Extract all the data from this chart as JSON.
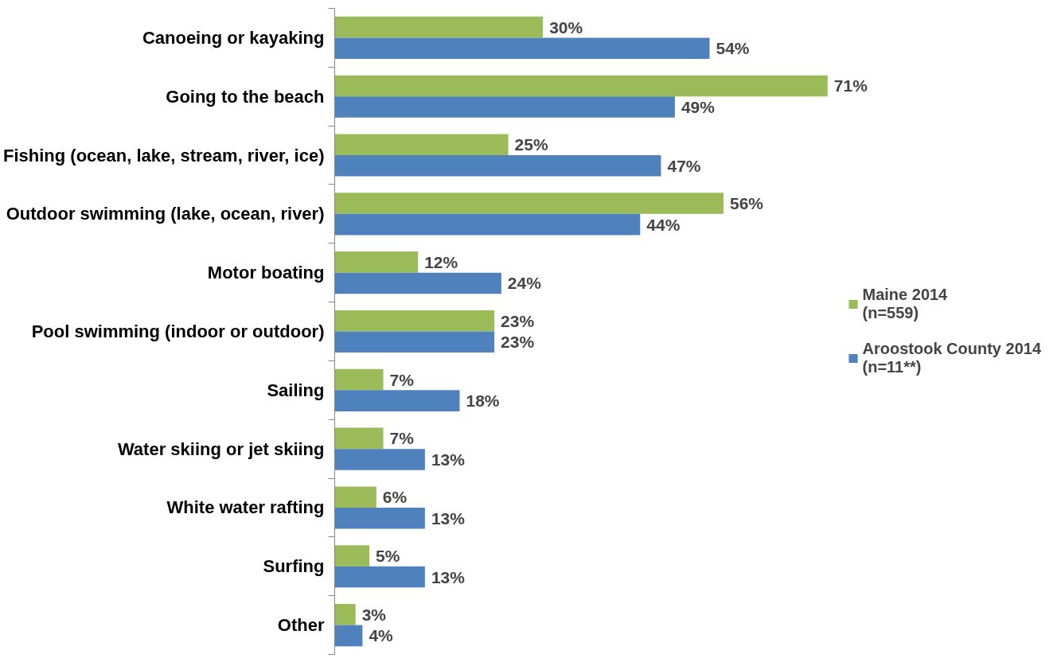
{
  "chart_data": {
    "type": "bar",
    "orientation": "horizontal",
    "legend": "right",
    "categories": [
      "Canoeing or kayaking",
      "Going to the beach",
      "Fishing (ocean, lake, stream, river, ice)",
      "Outdoor swimming (lake, ocean, river)",
      "Motor boating",
      "Pool swimming (indoor or outdoor)",
      "Sailing",
      "Water skiing or jet skiing",
      "White water rafting",
      "Surfing",
      "Other"
    ],
    "series": [
      {
        "name": "Maine 2014\n(n=559)",
        "color": "#9bbb59",
        "values": [
          30,
          71,
          25,
          56,
          12,
          23,
          7,
          7,
          6,
          5,
          3
        ],
        "value_labels": [
          "30%",
          "71%",
          "25%",
          "56%",
          "12%",
          "23%",
          "7%",
          "7%",
          "6%",
          "5%",
          "3%"
        ]
      },
      {
        "name": "Aroostook County 2014\n(n=11**)",
        "color": "#4f81bd",
        "values": [
          54,
          49,
          47,
          44,
          24,
          23,
          18,
          13,
          13,
          13,
          4
        ],
        "value_labels": [
          "54%",
          "49%",
          "47%",
          "44%",
          "24%",
          "23%",
          "18%",
          "13%",
          "13%",
          "13%",
          "4%"
        ]
      }
    ]
  }
}
